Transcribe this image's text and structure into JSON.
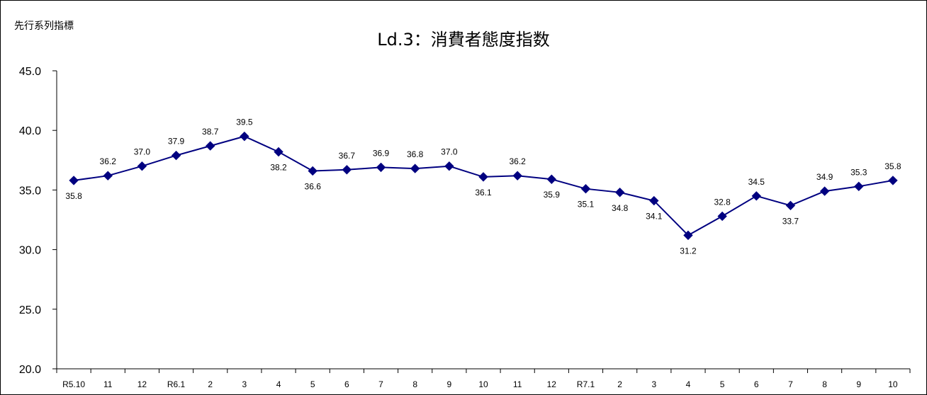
{
  "corner_label": "先行系列指標",
  "chart_data": {
    "type": "line",
    "title": "Ld.3：消費者態度指数",
    "xlabel": "",
    "ylabel": "",
    "ylim": [
      20.0,
      45.0
    ],
    "yticks": [
      "20.0",
      "25.0",
      "30.0",
      "35.0",
      "40.0",
      "45.0"
    ],
    "categories": [
      "R5.10",
      "11",
      "12",
      "R6.1",
      "2",
      "3",
      "4",
      "5",
      "6",
      "7",
      "8",
      "9",
      "10",
      "11",
      "12",
      "R7.1",
      "2",
      "3",
      "4",
      "5",
      "6",
      "7",
      "8",
      "9",
      "10"
    ],
    "series": [
      {
        "name": "",
        "values": [
          35.8,
          36.2,
          37.0,
          37.9,
          38.7,
          39.5,
          38.2,
          36.6,
          36.7,
          36.9,
          36.8,
          37.0,
          36.1,
          36.2,
          35.9,
          35.1,
          34.8,
          34.1,
          31.2,
          32.8,
          34.5,
          33.7,
          34.9,
          35.3,
          35.8
        ],
        "labels": [
          "35.8",
          "36.2",
          "37.0",
          "37.9",
          "38.7",
          "39.5",
          "38.2",
          "36.6",
          "36.7",
          "36.9",
          "36.8",
          "37.0",
          "36.1",
          "36.2",
          "35.9",
          "35.1",
          "34.8",
          "34.1",
          "31.2",
          "32.8",
          "34.5",
          "33.7",
          "34.9",
          "35.3",
          "35.8"
        ],
        "label_side": [
          "below",
          "above",
          "above",
          "above",
          "above",
          "above",
          "below",
          "below",
          "above",
          "above",
          "above",
          "above",
          "below",
          "above",
          "below",
          "below",
          "below",
          "below",
          "below",
          "above",
          "above",
          "below",
          "above",
          "above",
          "above"
        ],
        "color": "#000080"
      }
    ],
    "grid": false,
    "legend": "none"
  }
}
